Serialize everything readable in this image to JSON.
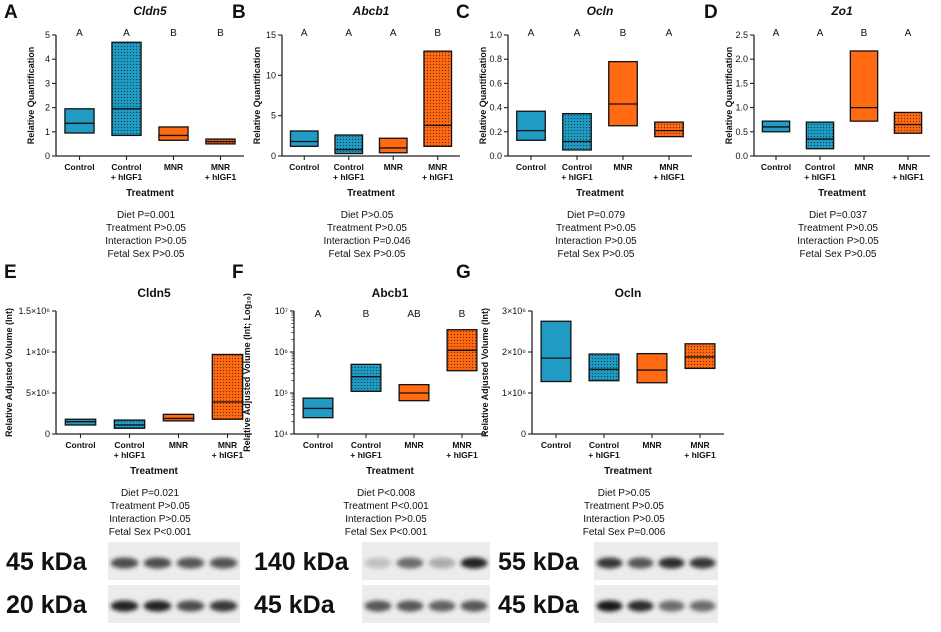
{
  "colors": {
    "control": "#1f9bc4",
    "mnr": "#ff6a13",
    "axis": "#222222"
  },
  "chart_data": [
    {
      "id": "A",
      "type": "box",
      "title": "Cldn5",
      "italic": true,
      "ylabel": "Relative Quantification",
      "xlabel": "Treatment",
      "ylim": [
        0,
        5
      ],
      "yticks": [
        0,
        1,
        2,
        3,
        4,
        5
      ],
      "ytick_labels": [
        "0",
        "1",
        "2",
        "3",
        "4",
        "5"
      ],
      "log": false,
      "categories": [
        "Control",
        "Control\n+ hIGF1",
        "MNR",
        "MNR\n+ hIGF1"
      ],
      "boxes": [
        {
          "min": 0.95,
          "max": 1.95,
          "median": 1.35,
          "group": "control",
          "pattern": false
        },
        {
          "min": 0.85,
          "max": 4.7,
          "median": 1.95,
          "group": "control",
          "pattern": true
        },
        {
          "min": 0.65,
          "max": 1.2,
          "median": 0.85,
          "group": "mnr",
          "pattern": false
        },
        {
          "min": 0.5,
          "max": 0.7,
          "median": 0.6,
          "group": "mnr",
          "pattern": true
        }
      ],
      "letters": [
        "A",
        "A",
        "B",
        "B"
      ],
      "stats": [
        "Diet P=0.001",
        "Treatment P>0.05",
        "Interaction P>0.05",
        "Fetal Sex P>0.05"
      ]
    },
    {
      "id": "B",
      "type": "box",
      "title": "Abcb1",
      "italic": true,
      "ylabel": "Relative Quantification",
      "xlabel": "Treatment",
      "ylim": [
        0,
        15
      ],
      "yticks": [
        0,
        5,
        10,
        15
      ],
      "ytick_labels": [
        "0",
        "5",
        "10",
        "15"
      ],
      "log": false,
      "categories": [
        "Control",
        "Control\n+ hIGF1",
        "MNR",
        "MNR\n+ hIGF1"
      ],
      "boxes": [
        {
          "min": 1.2,
          "max": 3.1,
          "median": 1.8,
          "group": "control",
          "pattern": false
        },
        {
          "min": 0.3,
          "max": 2.6,
          "median": 0.8,
          "group": "control",
          "pattern": true
        },
        {
          "min": 0.4,
          "max": 2.2,
          "median": 1.0,
          "group": "mnr",
          "pattern": false
        },
        {
          "min": 1.2,
          "max": 13.0,
          "median": 3.8,
          "group": "mnr",
          "pattern": true
        }
      ],
      "letters": [
        "A",
        "A",
        "A",
        "B"
      ],
      "stats": [
        "Diet P>0.05",
        "Treatment P>0.05",
        "Interaction P=0.046",
        "Fetal Sex P>0.05"
      ]
    },
    {
      "id": "C",
      "type": "box",
      "title": "Ocln",
      "italic": true,
      "ylabel": "Relative Quantification",
      "xlabel": "Treatment",
      "ylim": [
        0,
        1
      ],
      "yticks": [
        0,
        0.2,
        0.4,
        0.6,
        0.8,
        1.0
      ],
      "ytick_labels": [
        "0.0",
        "0.2",
        "0.4",
        "0.6",
        "0.8",
        "1.0"
      ],
      "log": false,
      "categories": [
        "Control",
        "Control\n+ hIGF1",
        "MNR",
        "MNR\n+ hIGF1"
      ],
      "boxes": [
        {
          "min": 0.13,
          "max": 0.37,
          "median": 0.21,
          "group": "control",
          "pattern": false
        },
        {
          "min": 0.05,
          "max": 0.35,
          "median": 0.12,
          "group": "control",
          "pattern": true
        },
        {
          "min": 0.25,
          "max": 0.78,
          "median": 0.43,
          "group": "mnr",
          "pattern": false
        },
        {
          "min": 0.16,
          "max": 0.28,
          "median": 0.21,
          "group": "mnr",
          "pattern": true
        }
      ],
      "letters": [
        "A",
        "A",
        "B",
        "A"
      ],
      "stats": [
        "Diet P=0.079",
        "Treatment P>0.05",
        "Interaction P>0.05",
        "Fetal Sex P>0.05"
      ]
    },
    {
      "id": "D",
      "type": "box",
      "title": "Zo1",
      "italic": true,
      "ylabel": "Relative Quantification",
      "xlabel": "Treatment",
      "ylim": [
        0,
        2.5
      ],
      "yticks": [
        0,
        0.5,
        1.0,
        1.5,
        2.0,
        2.5
      ],
      "ytick_labels": [
        "0.0",
        "0.5",
        "1.0",
        "1.5",
        "2.0",
        "2.5"
      ],
      "log": false,
      "categories": [
        "Control",
        "Control\n+ hIGF1",
        "MNR",
        "MNR\n+ hIGF1"
      ],
      "boxes": [
        {
          "min": 0.5,
          "max": 0.72,
          "median": 0.6,
          "group": "control",
          "pattern": false
        },
        {
          "min": 0.15,
          "max": 0.7,
          "median": 0.35,
          "group": "control",
          "pattern": true
        },
        {
          "min": 0.72,
          "max": 2.17,
          "median": 1.0,
          "group": "mnr",
          "pattern": false
        },
        {
          "min": 0.47,
          "max": 0.9,
          "median": 0.65,
          "group": "mnr",
          "pattern": true
        }
      ],
      "letters": [
        "A",
        "A",
        "B",
        "A"
      ],
      "stats": [
        "Diet P=0.037",
        "Treatment P>0.05",
        "Interaction P>0.05",
        "Fetal Sex P>0.05"
      ]
    },
    {
      "id": "E",
      "type": "box",
      "title": "Cldn5",
      "italic": false,
      "ylabel": "Relative Adjusted Volume (Int)",
      "xlabel": "Treatment",
      "ylim": [
        0,
        1500000
      ],
      "yticks": [
        0,
        500000,
        1000000,
        1500000
      ],
      "ytick_labels": [
        "0",
        "5×10⁵",
        "1×10⁶",
        "1.5×10⁶"
      ],
      "log": false,
      "categories": [
        "Control",
        "Control\n+ hIGF1",
        "MNR",
        "MNR\n+ hIGF1"
      ],
      "boxes": [
        {
          "min": 110000,
          "max": 180000,
          "median": 150000,
          "group": "control",
          "pattern": false
        },
        {
          "min": 70000,
          "max": 170000,
          "median": 110000,
          "group": "control",
          "pattern": true
        },
        {
          "min": 160000,
          "max": 240000,
          "median": 190000,
          "group": "mnr",
          "pattern": false
        },
        {
          "min": 180000,
          "max": 970000,
          "median": 390000,
          "group": "mnr",
          "pattern": true
        }
      ],
      "letters": [],
      "stats": [
        "Diet P=0.021",
        "Treatment P>0.05",
        "Interaction P>0.05",
        "Fetal Sex P<0.001"
      ]
    },
    {
      "id": "F",
      "type": "box",
      "title": "Abcb1",
      "italic": false,
      "ylabel": "Relative Adjusted Volume (Int; Log₁₀)",
      "xlabel": "Treatment",
      "ylim": [
        10000,
        10000000
      ],
      "yticks": [
        10000,
        100000,
        1000000,
        10000000
      ],
      "ytick_labels": [
        "10⁴",
        "10⁵",
        "10⁶",
        "10⁷"
      ],
      "log": true,
      "categories": [
        "Control",
        "Control\n+ hIGF1",
        "MNR",
        "MNR\n+ hIGF1"
      ],
      "boxes": [
        {
          "min": 25000,
          "max": 75000,
          "median": 42000,
          "group": "control",
          "pattern": false
        },
        {
          "min": 110000,
          "max": 500000,
          "median": 250000,
          "group": "control",
          "pattern": true
        },
        {
          "min": 65000,
          "max": 160000,
          "median": 100000,
          "group": "mnr",
          "pattern": false
        },
        {
          "min": 350000,
          "max": 3500000,
          "median": 1100000,
          "group": "mnr",
          "pattern": true
        }
      ],
      "letters": [
        "A",
        "B",
        "AB",
        "B"
      ],
      "stats": [
        "Diet P<0.008",
        "Treatment P<0.001",
        "Interaction P>0.05",
        "Fetal Sex P<0.001"
      ]
    },
    {
      "id": "G",
      "type": "box",
      "title": "Ocln",
      "italic": false,
      "ylabel": "Relative Adjusted Volume (Int)",
      "xlabel": "Treatment",
      "ylim": [
        0,
        3000000
      ],
      "yticks": [
        0,
        1000000,
        2000000,
        3000000
      ],
      "ytick_labels": [
        "0",
        "1×10⁶",
        "2×10⁶",
        "3×10⁶"
      ],
      "log": false,
      "categories": [
        "Control",
        "Control\n+ hIGF1",
        "MNR",
        "MNR\n+ hIGF1"
      ],
      "boxes": [
        {
          "min": 1280000,
          "max": 2750000,
          "median": 1850000,
          "group": "control",
          "pattern": false
        },
        {
          "min": 1300000,
          "max": 1950000,
          "median": 1580000,
          "group": "control",
          "pattern": true
        },
        {
          "min": 1250000,
          "max": 1960000,
          "median": 1560000,
          "group": "mnr",
          "pattern": false
        },
        {
          "min": 1600000,
          "max": 2200000,
          "median": 1880000,
          "group": "mnr",
          "pattern": true
        }
      ],
      "letters": [],
      "stats": [
        "Diet P>0.05",
        "Treatment P>0.05",
        "Interaction P>0.05",
        "Fetal Sex P=0.006"
      ]
    }
  ],
  "blots": [
    {
      "id": "E",
      "rows": [
        {
          "label": "45 kDa",
          "intensity": [
            0.75,
            0.75,
            0.7,
            0.72
          ]
        },
        {
          "label": "20 kDa",
          "intensity": [
            0.95,
            0.95,
            0.75,
            0.85
          ]
        }
      ]
    },
    {
      "id": "F",
      "rows": [
        {
          "label": "140 kDa",
          "intensity": [
            0.2,
            0.6,
            0.3,
            0.95
          ]
        },
        {
          "label": "45 kDa",
          "intensity": [
            0.7,
            0.7,
            0.65,
            0.7
          ]
        }
      ]
    },
    {
      "id": "G",
      "rows": [
        {
          "label": "55 kDa",
          "intensity": [
            0.85,
            0.7,
            0.9,
            0.85
          ]
        },
        {
          "label": "45 kDa",
          "intensity": [
            1.0,
            0.9,
            0.6,
            0.6
          ]
        }
      ]
    }
  ]
}
